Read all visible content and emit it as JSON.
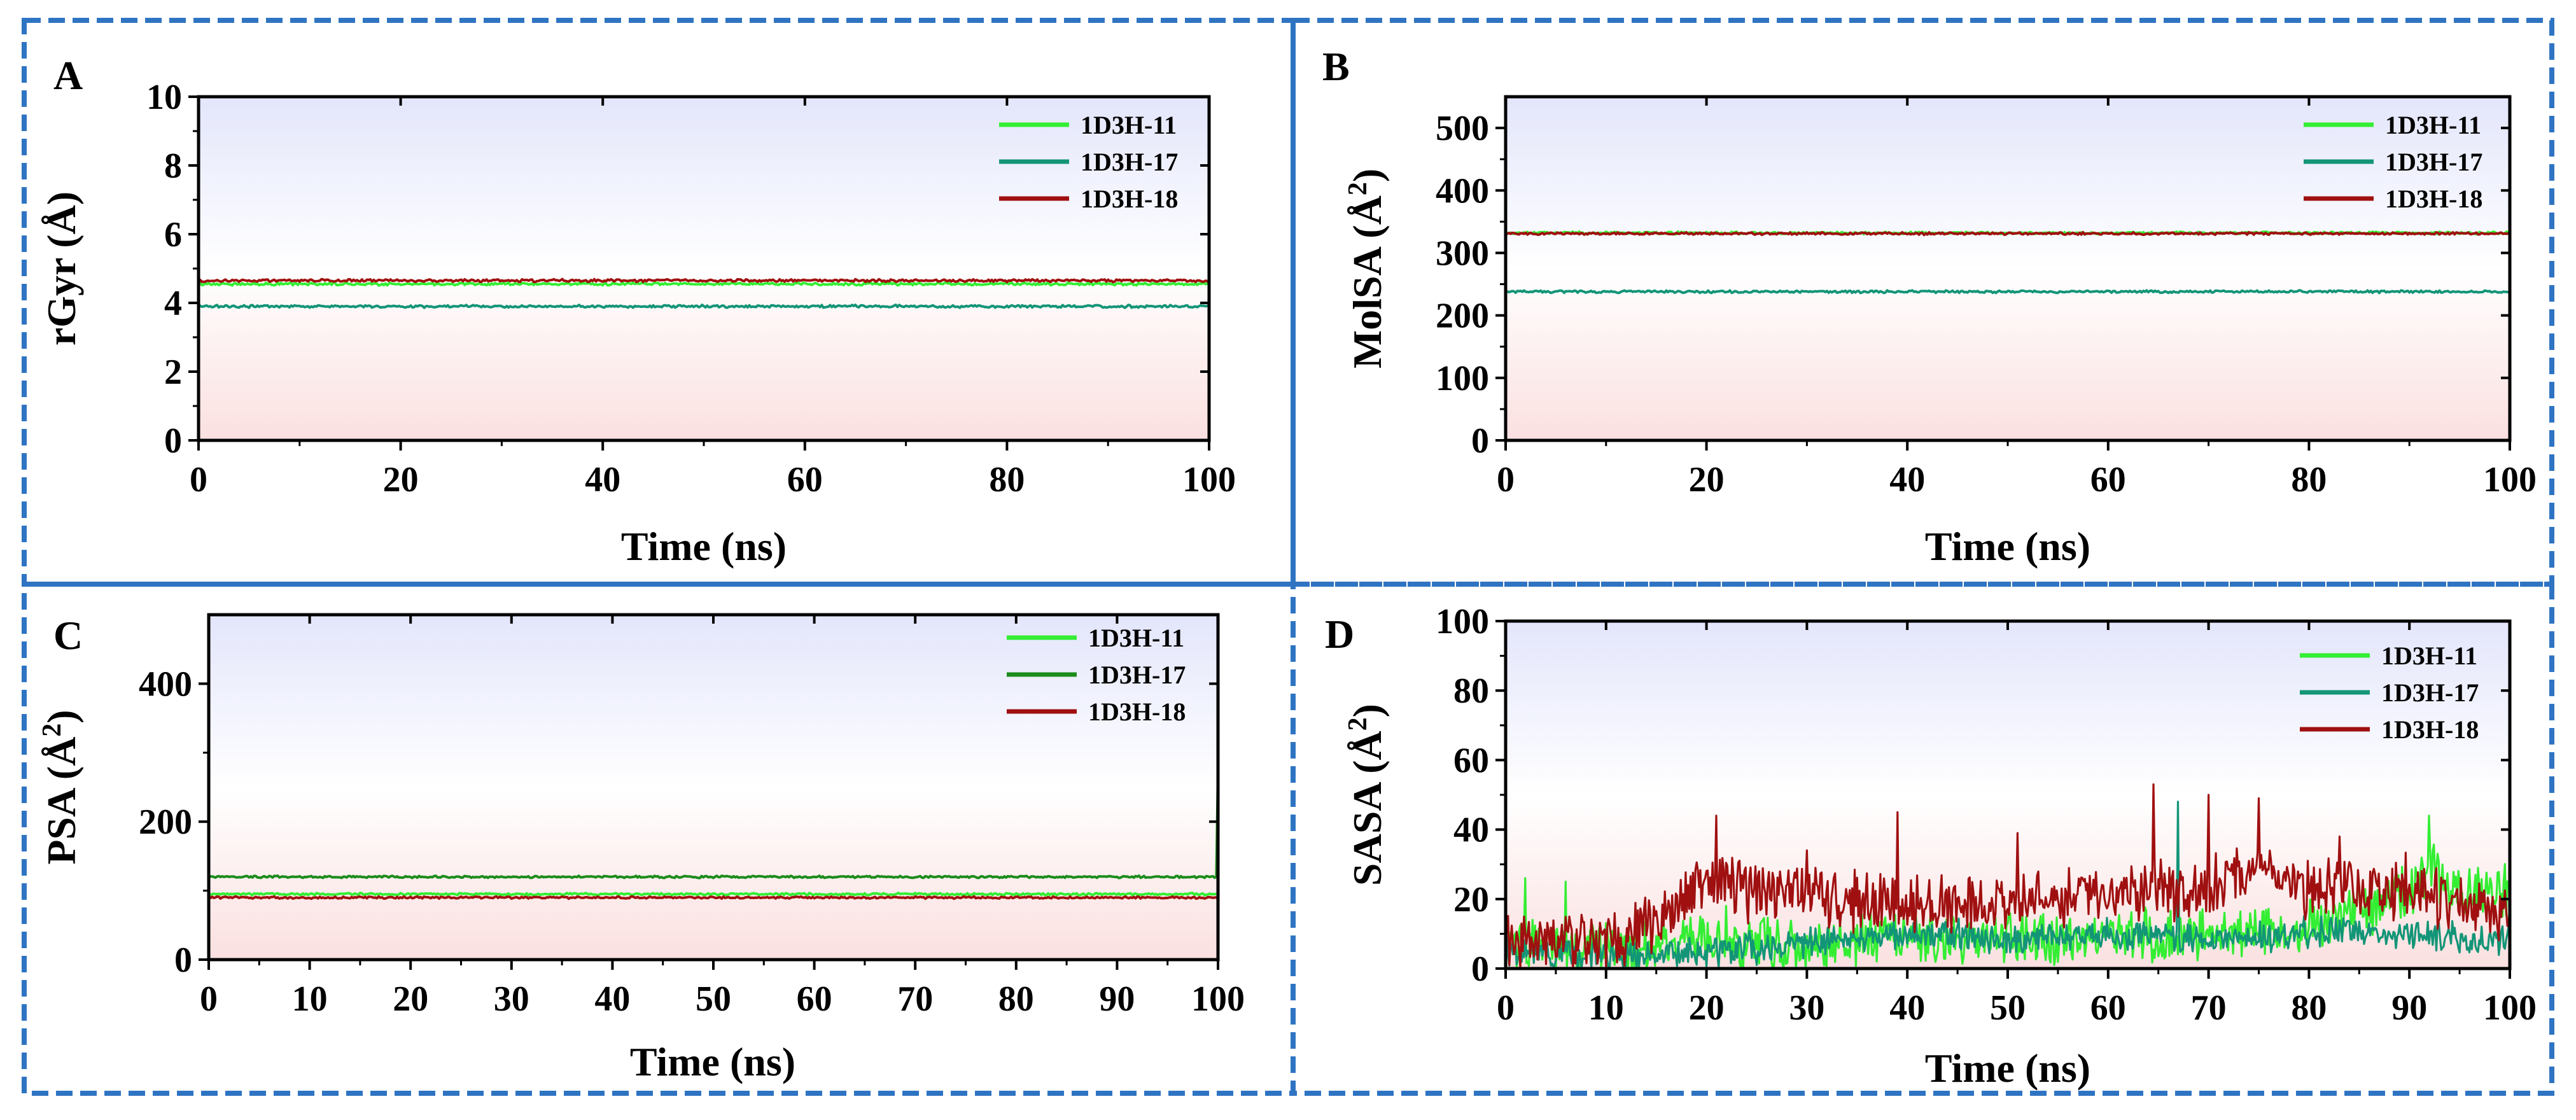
{
  "figure": {
    "panels": [
      "A",
      "B",
      "C",
      "D"
    ]
  },
  "chart_data": [
    {
      "id": "A",
      "panel_label": "A",
      "type": "line",
      "title": "",
      "xlabel": "Time (ns)",
      "ylabel": "rGyr (Å)",
      "xlim": [
        0,
        100
      ],
      "ylim": [
        0,
        10
      ],
      "xticks": [
        0,
        20,
        40,
        60,
        80,
        100
      ],
      "yticks": [
        0,
        2,
        4,
        6,
        8,
        10
      ],
      "legend": "top-right",
      "series": [
        {
          "name": "1D3H-11",
          "color": "#33ee33",
          "mean": 4.55,
          "noise": 0.03,
          "spikes": []
        },
        {
          "name": "1D3H-17",
          "color": "#139577",
          "mean": 3.9,
          "noise": 0.03,
          "spikes": []
        },
        {
          "name": "1D3H-18",
          "color": "#a01010",
          "mean": 4.65,
          "noise": 0.03,
          "spikes": []
        }
      ]
    },
    {
      "id": "B",
      "panel_label": "B",
      "type": "line",
      "title": "",
      "xlabel": "Time (ns)",
      "ylabel": "MolSA (Å²)",
      "xlim": [
        0,
        100
      ],
      "ylim": [
        0,
        550
      ],
      "xticks": [
        0,
        20,
        40,
        60,
        80,
        100
      ],
      "yticks": [
        0,
        100,
        200,
        300,
        400,
        500
      ],
      "legend": "top-right",
      "series": [
        {
          "name": "1D3H-11",
          "color": "#33ee33",
          "mean": 332,
          "noise": 1.5,
          "spikes": []
        },
        {
          "name": "1D3H-17",
          "color": "#139577",
          "mean": 238,
          "noise": 1.5,
          "spikes": []
        },
        {
          "name": "1D3H-18",
          "color": "#a01010",
          "mean": 331,
          "noise": 1.5,
          "spikes": []
        }
      ]
    },
    {
      "id": "C",
      "panel_label": "C",
      "type": "line",
      "title": "",
      "xlabel": "Time (ns)",
      "ylabel": "PSA (Å²)",
      "xlim": [
        0,
        100
      ],
      "ylim": [
        0,
        500
      ],
      "xticks": [
        0,
        10,
        20,
        30,
        40,
        50,
        60,
        70,
        80,
        90,
        100
      ],
      "yticks": [
        0,
        200,
        400
      ],
      "legend": "top-right",
      "series": [
        {
          "name": "1D3H-11",
          "color": "#33ee33",
          "mean": 95,
          "noise": 1.2,
          "spikes": []
        },
        {
          "name": "1D3H-17",
          "color": "#1b8c1b",
          "mean": 120,
          "noise": 1.2,
          "spikes": [
            [
              100,
              280
            ]
          ]
        },
        {
          "name": "1D3H-18",
          "color": "#a01010",
          "mean": 90,
          "noise": 1.2,
          "spikes": []
        }
      ]
    },
    {
      "id": "D",
      "panel_label": "D",
      "type": "line",
      "title": "",
      "xlabel": "Time (ns)",
      "ylabel": "SASA (Å²)",
      "xlim": [
        0,
        100
      ],
      "ylim": [
        0,
        100
      ],
      "xticks": [
        0,
        10,
        20,
        30,
        40,
        50,
        60,
        70,
        80,
        90,
        100
      ],
      "yticks": [
        0,
        20,
        40,
        60,
        80,
        100
      ],
      "legend": "top-right",
      "series": [
        {
          "name": "1D3H-11",
          "color": "#33ee33",
          "trend_x": [
            0,
            10,
            15,
            20,
            30,
            40,
            50,
            60,
            70,
            80,
            90,
            92,
            95,
            100
          ],
          "trend_y": [
            8,
            6,
            7,
            8,
            6,
            9,
            8,
            9,
            10,
            12,
            22,
            28,
            22,
            22
          ],
          "noise": 6,
          "spikes": [
            [
              2,
              26
            ],
            [
              6,
              25
            ],
            [
              22,
              18
            ],
            [
              92,
              44
            ]
          ]
        },
        {
          "name": "1D3H-17",
          "color": "#139577",
          "trend_x": [
            0,
            10,
            20,
            30,
            40,
            50,
            60,
            70,
            80,
            90,
            100
          ],
          "trend_y": [
            5,
            4,
            5,
            7,
            10,
            9,
            10,
            8,
            10,
            10,
            8
          ],
          "noise": 3.5,
          "spikes": [
            [
              67,
              48
            ]
          ]
        },
        {
          "name": "1D3H-18",
          "color": "#a01010",
          "trend_x": [
            0,
            10,
            12,
            15,
            20,
            25,
            30,
            40,
            50,
            60,
            70,
            75,
            80,
            90,
            100
          ],
          "trend_y": [
            8,
            8,
            9,
            15,
            25,
            22,
            22,
            18,
            20,
            22,
            22,
            30,
            22,
            23,
            15
          ],
          "noise": 7,
          "spikes": [
            [
              21,
              44
            ],
            [
              30,
              34
            ],
            [
              39,
              45
            ],
            [
              51,
              39
            ],
            [
              64.5,
              53
            ],
            [
              70,
              50
            ],
            [
              75,
              49
            ],
            [
              83,
              38
            ]
          ]
        }
      ]
    }
  ]
}
